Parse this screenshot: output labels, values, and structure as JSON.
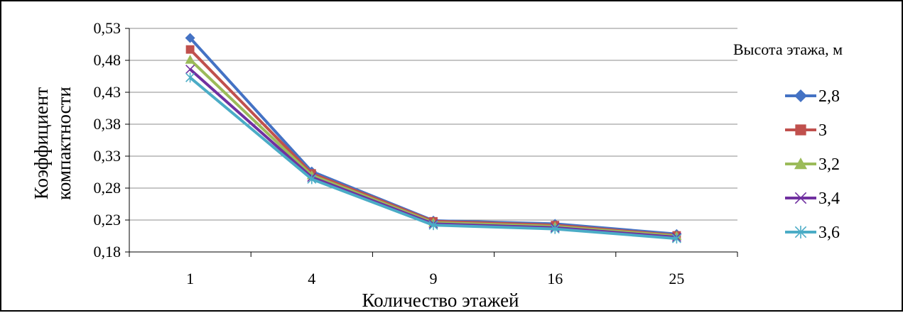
{
  "chart_data": {
    "type": "line",
    "title": "",
    "xlabel": "Количество этажей",
    "ylabel": "Коэффициент компактности",
    "ylabel_lines": [
      "Коэффициент",
      "компактности"
    ],
    "categories": [
      "1",
      "4",
      "9",
      "16",
      "25"
    ],
    "ylim": [
      0.18,
      0.53
    ],
    "yticks": [
      "0,18",
      "0,23",
      "0,28",
      "0,33",
      "0,38",
      "0,43",
      "0,48",
      "0,53"
    ],
    "ytick_values": [
      0.18,
      0.23,
      0.28,
      0.33,
      0.38,
      0.43,
      0.48,
      0.53
    ],
    "grid": "horizontal",
    "legend_title": "Высота этажа, м",
    "legend_position": "right",
    "series": [
      {
        "name": "2,8",
        "values": [
          0.515,
          0.306,
          0.229,
          0.224,
          0.208
        ],
        "color": "#4472C4",
        "marker": "diamond"
      },
      {
        "name": "3",
        "values": [
          0.497,
          0.303,
          0.228,
          0.222,
          0.206
        ],
        "color": "#C0504D",
        "marker": "square"
      },
      {
        "name": "3,2",
        "values": [
          0.481,
          0.3,
          0.226,
          0.22,
          0.205
        ],
        "color": "#9BBB59",
        "marker": "triangle"
      },
      {
        "name": "3,4",
        "values": [
          0.466,
          0.297,
          0.224,
          0.218,
          0.203
        ],
        "color": "#7030A0",
        "marker": "x"
      },
      {
        "name": "3,6",
        "values": [
          0.453,
          0.294,
          0.222,
          0.216,
          0.201
        ],
        "color": "#4BACC6",
        "marker": "asterisk"
      }
    ]
  }
}
